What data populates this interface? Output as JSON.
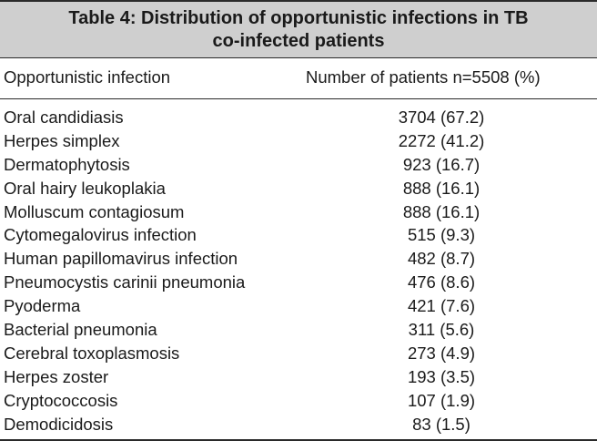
{
  "table": {
    "title_line1": "Table 4: Distribution of opportunistic infections in TB",
    "title_line2": "co-infected patients",
    "col1_header": "Opportunistic infection",
    "col2_header": "Number of patients n=5508 (%)",
    "rows": [
      {
        "infection": "Oral candidiasis",
        "value": "3704 (67.2)"
      },
      {
        "infection": "Herpes simplex",
        "value": "2272 (41.2)"
      },
      {
        "infection": "Dermatophytosis",
        "value": "923 (16.7)"
      },
      {
        "infection": "Oral hairy leukoplakia",
        "value": "888 (16.1)"
      },
      {
        "infection": "Molluscum contagiosum",
        "value": "888 (16.1)"
      },
      {
        "infection": "Cytomegalovirus infection",
        "value": "515 (9.3)"
      },
      {
        "infection": "Human papillomavirus infection",
        "value": "482 (8.7)"
      },
      {
        "infection": "Pneumocystis carinii pneumonia",
        "value": "476 (8.6)"
      },
      {
        "infection": "Pyoderma",
        "value": "421 (7.6)"
      },
      {
        "infection": "Bacterial pneumonia",
        "value": "311 (5.6)"
      },
      {
        "infection": "Cerebral toxoplasmosis",
        "value": "273 (4.9)"
      },
      {
        "infection": "Herpes zoster",
        "value": "193 (3.5)"
      },
      {
        "infection": "Cryptococcosis",
        "value": "107 (1.9)"
      },
      {
        "infection": "Demodicidosis",
        "value": "83 (1.5)"
      }
    ]
  }
}
